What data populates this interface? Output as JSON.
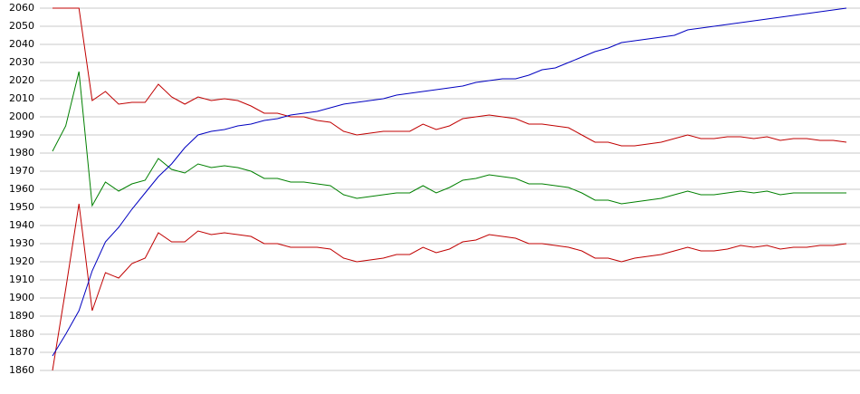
{
  "chart_data": {
    "type": "line",
    "categories": [
      null,
      null,
      null,
      null,
      null,
      null,
      null,
      null,
      null,
      null,
      null,
      null,
      null,
      null,
      null,
      null,
      null,
      null,
      null,
      null,
      null,
      null,
      null,
      null,
      null,
      null,
      null,
      null,
      null,
      null,
      null,
      null,
      null,
      null,
      null,
      null,
      null,
      null,
      null,
      null,
      null,
      null,
      null,
      null,
      null,
      null,
      null,
      null,
      null,
      null,
      null,
      null,
      null,
      null,
      null,
      null,
      null,
      null,
      null,
      null,
      null
    ],
    "series": [
      {
        "color": "#c00000",
        "values": [
          2060,
          2060,
          2060,
          2009,
          2014,
          2007,
          2008,
          2008,
          2018,
          2011,
          2007,
          2011,
          2009,
          2010,
          2009,
          2006,
          2002,
          2002,
          2000,
          2000,
          1998,
          1997,
          1992,
          1990,
          1991,
          1992,
          1992,
          1992,
          1996,
          1993,
          1995,
          1999,
          2000,
          2001,
          2000,
          1999,
          1996,
          1996,
          1995,
          1994,
          1990,
          1986,
          1986,
          1984,
          1984,
          1985,
          1986,
          1988,
          1990,
          1988,
          1988,
          1989,
          1989,
          1988,
          1989,
          1987,
          1988,
          1988,
          1987,
          1987,
          1986
        ]
      },
      {
        "color": "#008000",
        "values": [
          1981,
          1995,
          2025,
          1951,
          1964,
          1959,
          1963,
          1965,
          1977,
          1971,
          1969,
          1974,
          1972,
          1973,
          1972,
          1970,
          1966,
          1966,
          1964,
          1964,
          1963,
          1962,
          1957,
          1955,
          1956,
          1957,
          1958,
          1958,
          1962,
          1958,
          1961,
          1965,
          1966,
          1968,
          1967,
          1966,
          1963,
          1963,
          1962,
          1961,
          1958,
          1954,
          1954,
          1952,
          1953,
          1954,
          1955,
          1957,
          1959,
          1957,
          1957,
          1958,
          1959,
          1958,
          1959,
          1957,
          1958,
          1958,
          1958,
          1958,
          1958
        ]
      },
      {
        "color": "#c00000",
        "values": [
          1860,
          1905,
          1952,
          1893,
          1914,
          1911,
          1919,
          1922,
          1936,
          1931,
          1931,
          1937,
          1935,
          1936,
          1935,
          1934,
          1930,
          1930,
          1928,
          1928,
          1928,
          1927,
          1922,
          1920,
          1921,
          1922,
          1924,
          1924,
          1928,
          1925,
          1927,
          1931,
          1932,
          1935,
          1934,
          1933,
          1930,
          1930,
          1929,
          1928,
          1926,
          1922,
          1922,
          1920,
          1922,
          1923,
          1924,
          1926,
          1928,
          1926,
          1926,
          1927,
          1929,
          1928,
          1929,
          1927,
          1928,
          1928,
          1929,
          1929,
          1930
        ]
      },
      {
        "color": "#0000c0",
        "values": [
          1868,
          1880,
          1893,
          1915,
          1931,
          1939,
          1949,
          1958,
          1967,
          1974,
          1983,
          1990,
          1992,
          1993,
          1995,
          1996,
          1998,
          1999,
          2001,
          2002,
          2003,
          2005,
          2007,
          2008,
          2009,
          2010,
          2012,
          2013,
          2014,
          2015,
          2016,
          2017,
          2019,
          2020,
          2021,
          2021,
          2023,
          2026,
          2027,
          2030,
          2033,
          2036,
          2038,
          2041,
          2042,
          2043,
          2044,
          2045,
          2048,
          2049,
          2050,
          2051,
          2052,
          2053,
          2054,
          2055,
          2056,
          2057,
          2058,
          2059,
          2060
        ]
      }
    ],
    "ylim": [
      1860,
      2060
    ],
    "yticks": [
      1860,
      1870,
      1880,
      1890,
      1900,
      1910,
      1920,
      1930,
      1940,
      1950,
      1960,
      1970,
      1980,
      1990,
      2000,
      2010,
      2020,
      2030,
      2040,
      2050,
      2060
    ],
    "grid": true
  }
}
